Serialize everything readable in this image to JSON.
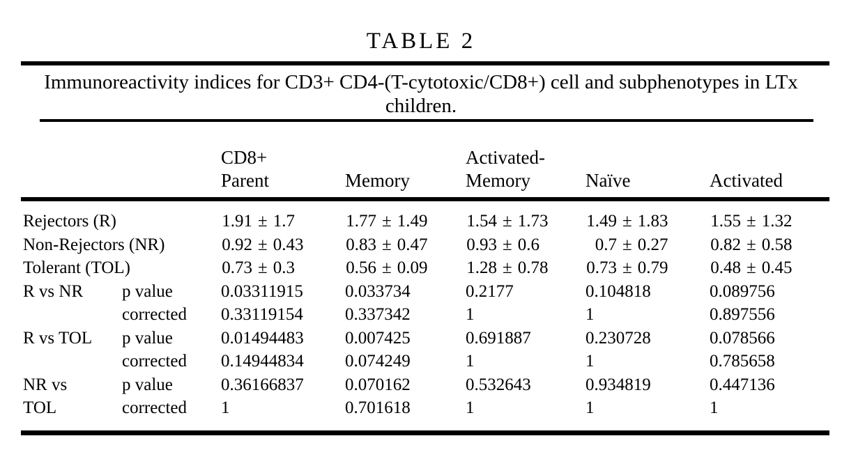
{
  "table": {
    "title": "TABLE 2",
    "caption_lines": [
      "Immunoreactivity indices for CD3+ CD4-(T-cytotoxic/CD8+) cell and subphenotypes in LTx",
      "children."
    ],
    "pm_sign": "±",
    "columns": [
      {
        "line1": "CD8+",
        "line2": "Parent"
      },
      {
        "line1": "",
        "line2": "Memory"
      },
      {
        "line1": "Activated-",
        "line2": "Memory"
      },
      {
        "line1": "",
        "line2": "Naïve"
      },
      {
        "line1": "",
        "line2": "Activated"
      }
    ],
    "rows": [
      {
        "label": "Rejectors (R)",
        "sublabel": "",
        "cells": [
          {
            "mean": "1.91",
            "sd": "1.7"
          },
          {
            "mean": "1.77",
            "sd": "1.49"
          },
          {
            "mean": "1.54",
            "sd": "1.73"
          },
          {
            "mean": "1.49",
            "sd": "1.83"
          },
          {
            "mean": "1.55",
            "sd": "1.32"
          }
        ]
      },
      {
        "label": "Non-Rejectors (NR)",
        "sublabel": "",
        "cells": [
          {
            "mean": "0.92",
            "sd": "0.43"
          },
          {
            "mean": "0.83",
            "sd": "0.47"
          },
          {
            "mean": "0.93",
            "sd": "0.6"
          },
          {
            "mean": "0.7",
            "sd": "0.27"
          },
          {
            "mean": "0.82",
            "sd": "0.58"
          }
        ]
      },
      {
        "label": "Tolerant (TOL)",
        "sublabel": "",
        "cells": [
          {
            "mean": "0.73",
            "sd": "0.3"
          },
          {
            "mean": "0.56",
            "sd": "0.09"
          },
          {
            "mean": "1.28",
            "sd": "0.78"
          },
          {
            "mean": "0.73",
            "sd": "0.79"
          },
          {
            "mean": "0.48",
            "sd": "0.45"
          }
        ]
      },
      {
        "label": "R vs NR",
        "sublabel": "p value",
        "cells": [
          {
            "value": "0.03311915"
          },
          {
            "value": "0.033734"
          },
          {
            "value": "0.2177"
          },
          {
            "value": "0.104818"
          },
          {
            "value": "0.089756"
          }
        ]
      },
      {
        "label": "",
        "sublabel": "corrected",
        "cells": [
          {
            "value": "0.33119154"
          },
          {
            "value": "0.337342"
          },
          {
            "value": "1"
          },
          {
            "value": "1"
          },
          {
            "value": "0.897556"
          }
        ]
      },
      {
        "label": "R vs TOL",
        "sublabel": "p value",
        "cells": [
          {
            "value": "0.01494483"
          },
          {
            "value": "0.007425"
          },
          {
            "value": "0.691887"
          },
          {
            "value": "0.230728"
          },
          {
            "value": "0.078566"
          }
        ]
      },
      {
        "label": "",
        "sublabel": "corrected",
        "cells": [
          {
            "value": "0.14944834"
          },
          {
            "value": "0.074249"
          },
          {
            "value": "1"
          },
          {
            "value": "1"
          },
          {
            "value": "0.785658"
          }
        ]
      },
      {
        "label": "NR vs",
        "sublabel": "p value",
        "cells": [
          {
            "value": "0.36166837"
          },
          {
            "value": "0.070162"
          },
          {
            "value": "0.532643"
          },
          {
            "value": "0.934819"
          },
          {
            "value": "0.447136"
          }
        ]
      },
      {
        "label": "TOL",
        "sublabel": "corrected",
        "cells": [
          {
            "value": "1"
          },
          {
            "value": "0.701618"
          },
          {
            "value": "1"
          },
          {
            "value": "1"
          },
          {
            "value": "1"
          }
        ]
      }
    ]
  }
}
